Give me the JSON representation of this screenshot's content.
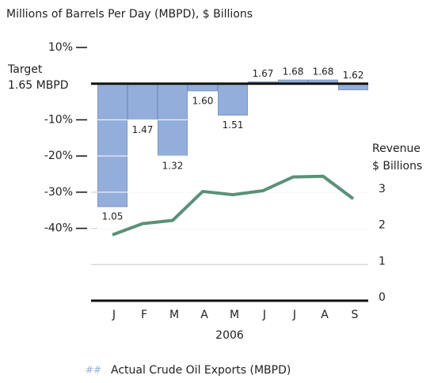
{
  "chart_data": {
    "type": "bar_line",
    "title": "Millions of Barrels Per Day (MBPD), $ Billions",
    "target_label": [
      "Target",
      "1.65 MBPD"
    ],
    "y2_label": [
      "Revenue",
      "$ Billions"
    ],
    "xlabel": "2006",
    "categories": [
      "J",
      "F",
      "M",
      "A",
      "M",
      "J",
      "J",
      "A",
      "S"
    ],
    "series": [
      {
        "name": "Actual Crude Oil Exports (MBPD)",
        "type": "bar",
        "color": "#94aedb",
        "values": [
          -34,
          -10,
          -20,
          -2,
          -8.7,
          0.5,
          1,
          1,
          -1.7
        ],
        "value_labels": [
          "1.05",
          "1.47",
          "1.32",
          "1.60",
          "1.51",
          "1.67",
          "1.68",
          "1.68",
          "1.62"
        ]
      },
      {
        "type": "line",
        "axis": "y2",
        "color": "#5a9178",
        "values": [
          1.82,
          2.13,
          2.22,
          3.02,
          2.93,
          3.04,
          3.42,
          3.44,
          2.82
        ]
      }
    ],
    "ylim": [
      -60,
      10
    ],
    "yticks": [
      {
        "value": 10,
        "label": "10%"
      },
      {
        "value": -10,
        "label": "-10%"
      },
      {
        "value": -20,
        "label": "-20%"
      },
      {
        "value": -30,
        "label": "-30%"
      },
      {
        "value": -40,
        "label": "-40%"
      }
    ],
    "y2lim": [
      0,
      7
    ],
    "y2ticks": [
      0,
      1,
      2,
      3
    ],
    "grid": true
  }
}
